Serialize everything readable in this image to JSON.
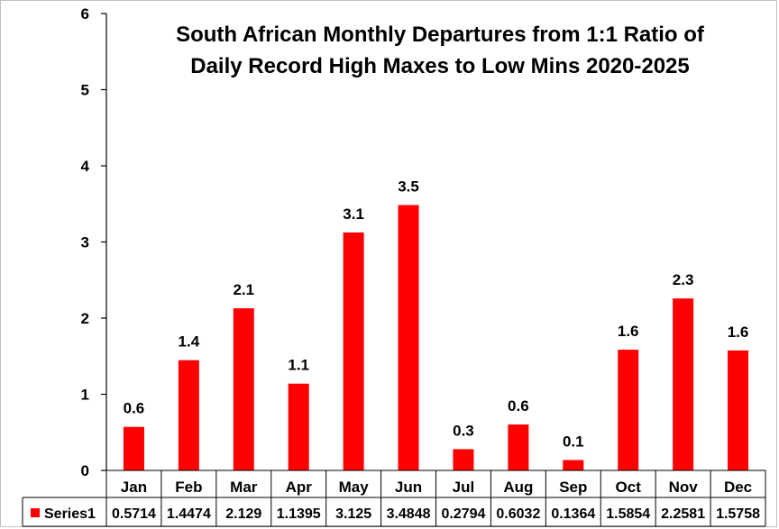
{
  "chart_data": {
    "type": "bar",
    "title": [
      "South African Monthly Departures from 1:1 Ratio of",
      "Daily Record High Maxes to Low Mins 2020-2025"
    ],
    "categories": [
      "Jan",
      "Feb",
      "Mar",
      "Apr",
      "May",
      "Jun",
      "Jul",
      "Aug",
      "Sep",
      "Oct",
      "Nov",
      "Dec"
    ],
    "series": [
      {
        "name": "Series1",
        "color": "#ff0000",
        "values": [
          0.5714,
          1.4474,
          2.129,
          1.1395,
          3.125,
          3.4848,
          0.2794,
          0.6032,
          0.1364,
          1.5854,
          2.2581,
          1.5758
        ],
        "data_labels": [
          "0.6",
          "1.4",
          "2.1",
          "1.1",
          "3.1",
          "3.5",
          "0.3",
          "0.6",
          "0.1",
          "1.6",
          "2.3",
          "1.6"
        ],
        "table_values": [
          "0.5714",
          "1.4474",
          "2.129",
          "1.1395",
          "3.125",
          "3.4848",
          "0.2794",
          "0.6032",
          "0.1364",
          "1.5854",
          "2.2581",
          "1.5758"
        ]
      }
    ],
    "ylim": [
      0,
      6
    ],
    "yticks": [
      "0",
      "1",
      "2",
      "3",
      "4",
      "5",
      "6"
    ],
    "xlabel": "",
    "ylabel": "",
    "grid": false,
    "legend": "data-table"
  }
}
